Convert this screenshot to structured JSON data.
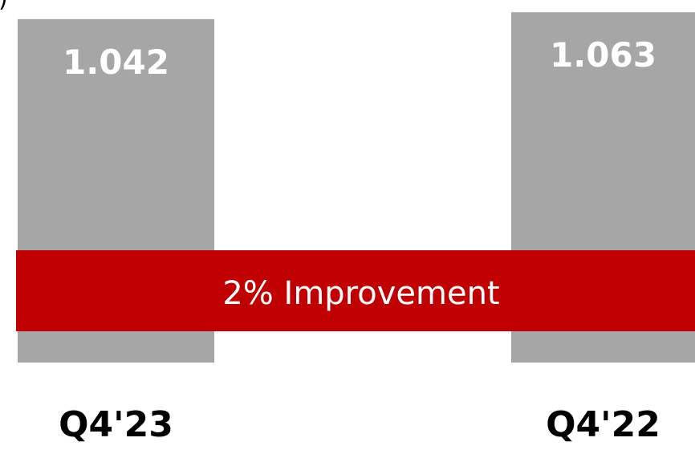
{
  "chart_data": {
    "type": "bar",
    "categories": [
      "Q4'23",
      "Q4'22"
    ],
    "values": [
      1.042,
      1.063
    ],
    "value_labels": [
      "1.042",
      "1.063"
    ],
    "ylim": [
      0,
      1.1
    ],
    "bar_color": "#a6a6a6",
    "grid": false,
    "legend": "none",
    "annotation": {
      "text": "2% Improvement",
      "color": "#c00000"
    }
  },
  "corner_mark": ")"
}
